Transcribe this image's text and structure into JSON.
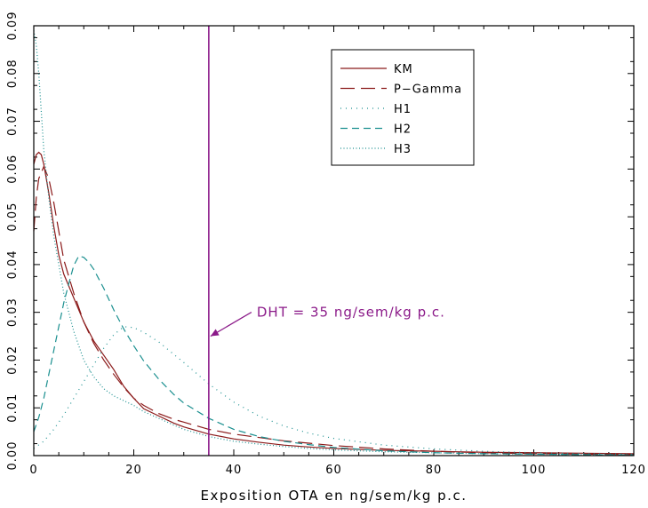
{
  "chart_data": {
    "type": "line",
    "xlabel": "Exposition OTA en ng/sem/kg p.c.",
    "ylabel": "",
    "xlim": [
      0,
      120
    ],
    "ylim": [
      0,
      0.09
    ],
    "xticks": [
      0,
      20,
      40,
      60,
      80,
      100,
      120
    ],
    "yticks": [
      0,
      0.01,
      0.02,
      0.03,
      0.04,
      0.05,
      0.06,
      0.07,
      0.08,
      0.09
    ],
    "xtick_labels": [
      "0",
      "20",
      "40",
      "60",
      "80",
      "100",
      "120"
    ],
    "ytick_labels": [
      "0.00",
      "0.01",
      "0.02",
      "0.03",
      "0.04",
      "0.05",
      "0.06",
      "0.07",
      "0.08",
      "0.09"
    ],
    "grid": false,
    "legend_position": "top-right",
    "series": [
      {
        "name": "KM",
        "color": "#8b1a1a",
        "dash": "solid",
        "x": [
          0,
          0.5,
          1,
          1.5,
          2,
          3,
          4,
          5,
          6,
          8,
          10,
          12,
          14,
          16,
          18,
          20,
          22,
          25,
          28,
          30,
          35,
          40,
          45,
          50,
          55,
          60,
          70,
          80,
          90,
          100,
          110,
          120
        ],
        "y": [
          0.061,
          0.063,
          0.0635,
          0.063,
          0.061,
          0.055,
          0.048,
          0.042,
          0.038,
          0.033,
          0.028,
          0.024,
          0.021,
          0.018,
          0.0145,
          0.012,
          0.0098,
          0.0083,
          0.0068,
          0.006,
          0.0045,
          0.0035,
          0.0028,
          0.0022,
          0.0018,
          0.0015,
          0.0011,
          0.0009,
          0.0007,
          0.0006,
          0.0005,
          0.0004
        ]
      },
      {
        "name": "P−Gamma",
        "color": "#8b1a1a",
        "dash": "long",
        "x": [
          0,
          0.5,
          1,
          2,
          3,
          4,
          5,
          6,
          8,
          10,
          12,
          14,
          16,
          18,
          20,
          22,
          25,
          28,
          30,
          35,
          40,
          45,
          50,
          55,
          60,
          70,
          80,
          90,
          100,
          110,
          120
        ],
        "y": [
          0.047,
          0.054,
          0.058,
          0.0605,
          0.058,
          0.053,
          0.047,
          0.041,
          0.034,
          0.028,
          0.0235,
          0.02,
          0.017,
          0.0143,
          0.012,
          0.0105,
          0.0088,
          0.0076,
          0.007,
          0.0055,
          0.0045,
          0.0038,
          0.0031,
          0.0026,
          0.0021,
          0.0014,
          0.0009,
          0.0006,
          0.0004,
          0.0003,
          0.0002
        ]
      },
      {
        "name": "H1",
        "color": "#1a8f8f",
        "dash": "dotted",
        "x": [
          0,
          2,
          4,
          6,
          8,
          10,
          12,
          14,
          16,
          18,
          20,
          22,
          25,
          28,
          30,
          35,
          40,
          45,
          50,
          55,
          60,
          70,
          80,
          90,
          100,
          110,
          120
        ],
        "y": [
          0.0015,
          0.003,
          0.0055,
          0.0085,
          0.012,
          0.0155,
          0.019,
          0.0225,
          0.0253,
          0.027,
          0.0268,
          0.0258,
          0.0238,
          0.0212,
          0.0195,
          0.015,
          0.0112,
          0.0083,
          0.0062,
          0.0047,
          0.0036,
          0.0022,
          0.0014,
          0.0009,
          0.0006,
          0.0004,
          0.0003
        ]
      },
      {
        "name": "H2",
        "color": "#1a8f8f",
        "dash": "dashed",
        "x": [
          0,
          1,
          2,
          3,
          4,
          5,
          6,
          7,
          8,
          9,
          10,
          11,
          12,
          14,
          16,
          18,
          20,
          22,
          25,
          28,
          30,
          35,
          40,
          45,
          50,
          55,
          60,
          70,
          80,
          90,
          100,
          110,
          120
        ],
        "y": [
          0.005,
          0.008,
          0.012,
          0.017,
          0.022,
          0.027,
          0.032,
          0.036,
          0.0398,
          0.0418,
          0.0415,
          0.0405,
          0.039,
          0.035,
          0.0305,
          0.0265,
          0.023,
          0.0198,
          0.016,
          0.0128,
          0.011,
          0.0078,
          0.0055,
          0.004,
          0.003,
          0.0023,
          0.0017,
          0.001,
          0.0006,
          0.0004,
          0.0003,
          0.0002,
          0.0001
        ]
      },
      {
        "name": "H3",
        "color": "#1a8f8f",
        "dash": "dense-dotted",
        "x": [
          0,
          0.5,
          1,
          1.5,
          2,
          3,
          4,
          5,
          6,
          8,
          10,
          12,
          14,
          16,
          18,
          20,
          22,
          25,
          28,
          30,
          35,
          40,
          45,
          50,
          55,
          60,
          70,
          80,
          90,
          100,
          110,
          120
        ],
        "y": [
          0.089,
          0.086,
          0.08,
          0.072,
          0.064,
          0.054,
          0.046,
          0.04,
          0.034,
          0.026,
          0.02,
          0.0165,
          0.014,
          0.0125,
          0.0115,
          0.0105,
          0.0092,
          0.0078,
          0.0064,
          0.0055,
          0.004,
          0.003,
          0.0024,
          0.0019,
          0.0015,
          0.0012,
          0.0008,
          0.0006,
          0.0004,
          0.0003,
          0.0002,
          0.0002
        ]
      }
    ],
    "reference_line": {
      "x": 35,
      "color": "#8b1a89",
      "label": "DHT = 35 ng/sem/kg p.c.",
      "arrow_to_y": 0.025
    }
  }
}
